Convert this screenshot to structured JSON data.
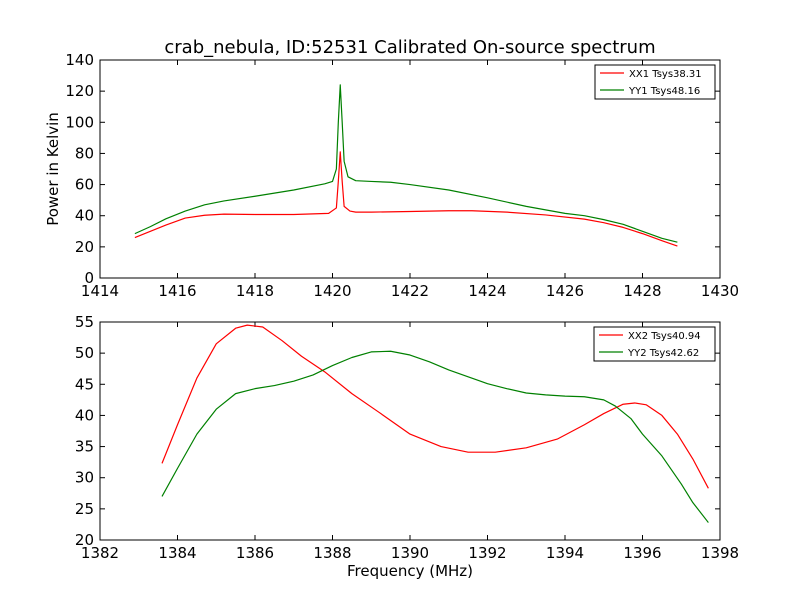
{
  "figure": {
    "title": "crab_nebula, ID:52531 Calibrated On-source spectrum",
    "xlabel": "Frequency (MHz)"
  },
  "chart_data": [
    {
      "type": "line",
      "title": "crab_nebula, ID:52531 Calibrated On-source spectrum",
      "xlabel": "",
      "ylabel": "Power in Kelvin",
      "xlim": [
        1414,
        1430
      ],
      "ylim": [
        0,
        140
      ],
      "xticks": [
        "1414",
        "1416",
        "1418",
        "1420",
        "1422",
        "1424",
        "1426",
        "1428",
        "1430"
      ],
      "yticks": [
        "0",
        "20",
        "40",
        "60",
        "80",
        "100",
        "120",
        "140"
      ],
      "grid": false,
      "legend": "top-right",
      "series": [
        {
          "name": "XX1 Tsys38.31",
          "color": "#ff0000",
          "x": [
            1414.9,
            1415.3,
            1415.7,
            1416.2,
            1416.7,
            1417.2,
            1418.0,
            1419.0,
            1419.9,
            1420.1,
            1420.15,
            1420.2,
            1420.25,
            1420.3,
            1420.45,
            1420.6,
            1421.0,
            1422.0,
            1423.0,
            1423.6,
            1424.5,
            1425.5,
            1426.5,
            1427.0,
            1427.5,
            1428.0,
            1428.5,
            1428.9
          ],
          "y": [
            26,
            30,
            34,
            38.5,
            40.3,
            41,
            40.8,
            40.8,
            41.5,
            45,
            62,
            81,
            62,
            46,
            43,
            42.3,
            42.3,
            42.7,
            43.2,
            43.2,
            42.3,
            40.5,
            37.8,
            35.5,
            32.5,
            28.5,
            24,
            20.5
          ]
        },
        {
          "name": "YY1 Tsys48.16",
          "color": "#008000",
          "x": [
            1414.9,
            1415.3,
            1415.7,
            1416.2,
            1416.7,
            1417.2,
            1418.0,
            1419.0,
            1419.8,
            1420.0,
            1420.1,
            1420.15,
            1420.2,
            1420.25,
            1420.3,
            1420.4,
            1420.6,
            1421.0,
            1421.5,
            1422.0,
            1423.0,
            1424.0,
            1425.0,
            1426.0,
            1426.5,
            1427.0,
            1427.5,
            1428.0,
            1428.5,
            1428.9
          ],
          "y": [
            28.5,
            33,
            38,
            43,
            47,
            49.5,
            52.5,
            56.5,
            60.5,
            62,
            70,
            100,
            124,
            100,
            75,
            65,
            62.5,
            62,
            61.5,
            60,
            56.5,
            51.5,
            46,
            41.5,
            40,
            37.5,
            34.5,
            30,
            25.5,
            23
          ]
        }
      ]
    },
    {
      "type": "line",
      "title": "",
      "xlabel": "Frequency (MHz)",
      "ylabel": "",
      "xlim": [
        1382,
        1398
      ],
      "ylim": [
        20,
        55
      ],
      "xticks": [
        "1382",
        "1384",
        "1386",
        "1388",
        "1390",
        "1392",
        "1394",
        "1396",
        "1398"
      ],
      "yticks": [
        "20",
        "25",
        "30",
        "35",
        "40",
        "45",
        "50",
        "55"
      ],
      "grid": false,
      "legend": "top-right",
      "series": [
        {
          "name": "XX2 Tsys40.94",
          "color": "#ff0000",
          "x": [
            1383.6,
            1384.0,
            1384.5,
            1385.0,
            1385.5,
            1385.8,
            1386.2,
            1386.7,
            1387.2,
            1387.8,
            1388.5,
            1389.2,
            1390.0,
            1390.8,
            1391.5,
            1392.2,
            1393.0,
            1393.8,
            1394.5,
            1395.0,
            1395.5,
            1395.8,
            1396.1,
            1396.5,
            1396.9,
            1397.3,
            1397.7
          ],
          "y": [
            32.3,
            38.5,
            46,
            51.5,
            54,
            54.5,
            54.2,
            52,
            49.5,
            47,
            43.5,
            40.5,
            37,
            35,
            34.1,
            34.1,
            34.8,
            36.2,
            38.5,
            40.3,
            41.8,
            42,
            41.7,
            40,
            37,
            33,
            28.3
          ]
        },
        {
          "name": "YY2 Tsys42.62",
          "color": "#008000",
          "x": [
            1383.6,
            1384.0,
            1384.5,
            1385.0,
            1385.5,
            1386.0,
            1386.5,
            1387.0,
            1387.5,
            1388.0,
            1388.5,
            1389.0,
            1389.5,
            1390.0,
            1390.5,
            1391.0,
            1391.5,
            1392.0,
            1392.5,
            1393.0,
            1393.5,
            1394.0,
            1394.5,
            1395.0,
            1395.3,
            1395.7,
            1396.0,
            1396.5,
            1397.0,
            1397.3,
            1397.7
          ],
          "y": [
            27,
            31.5,
            37,
            41,
            43.5,
            44.3,
            44.8,
            45.5,
            46.5,
            48,
            49.3,
            50.2,
            50.3,
            49.7,
            48.6,
            47.3,
            46.2,
            45.1,
            44.3,
            43.6,
            43.3,
            43.1,
            43.0,
            42.5,
            41.5,
            39.5,
            37,
            33.5,
            29,
            26,
            22.8
          ]
        }
      ]
    }
  ]
}
